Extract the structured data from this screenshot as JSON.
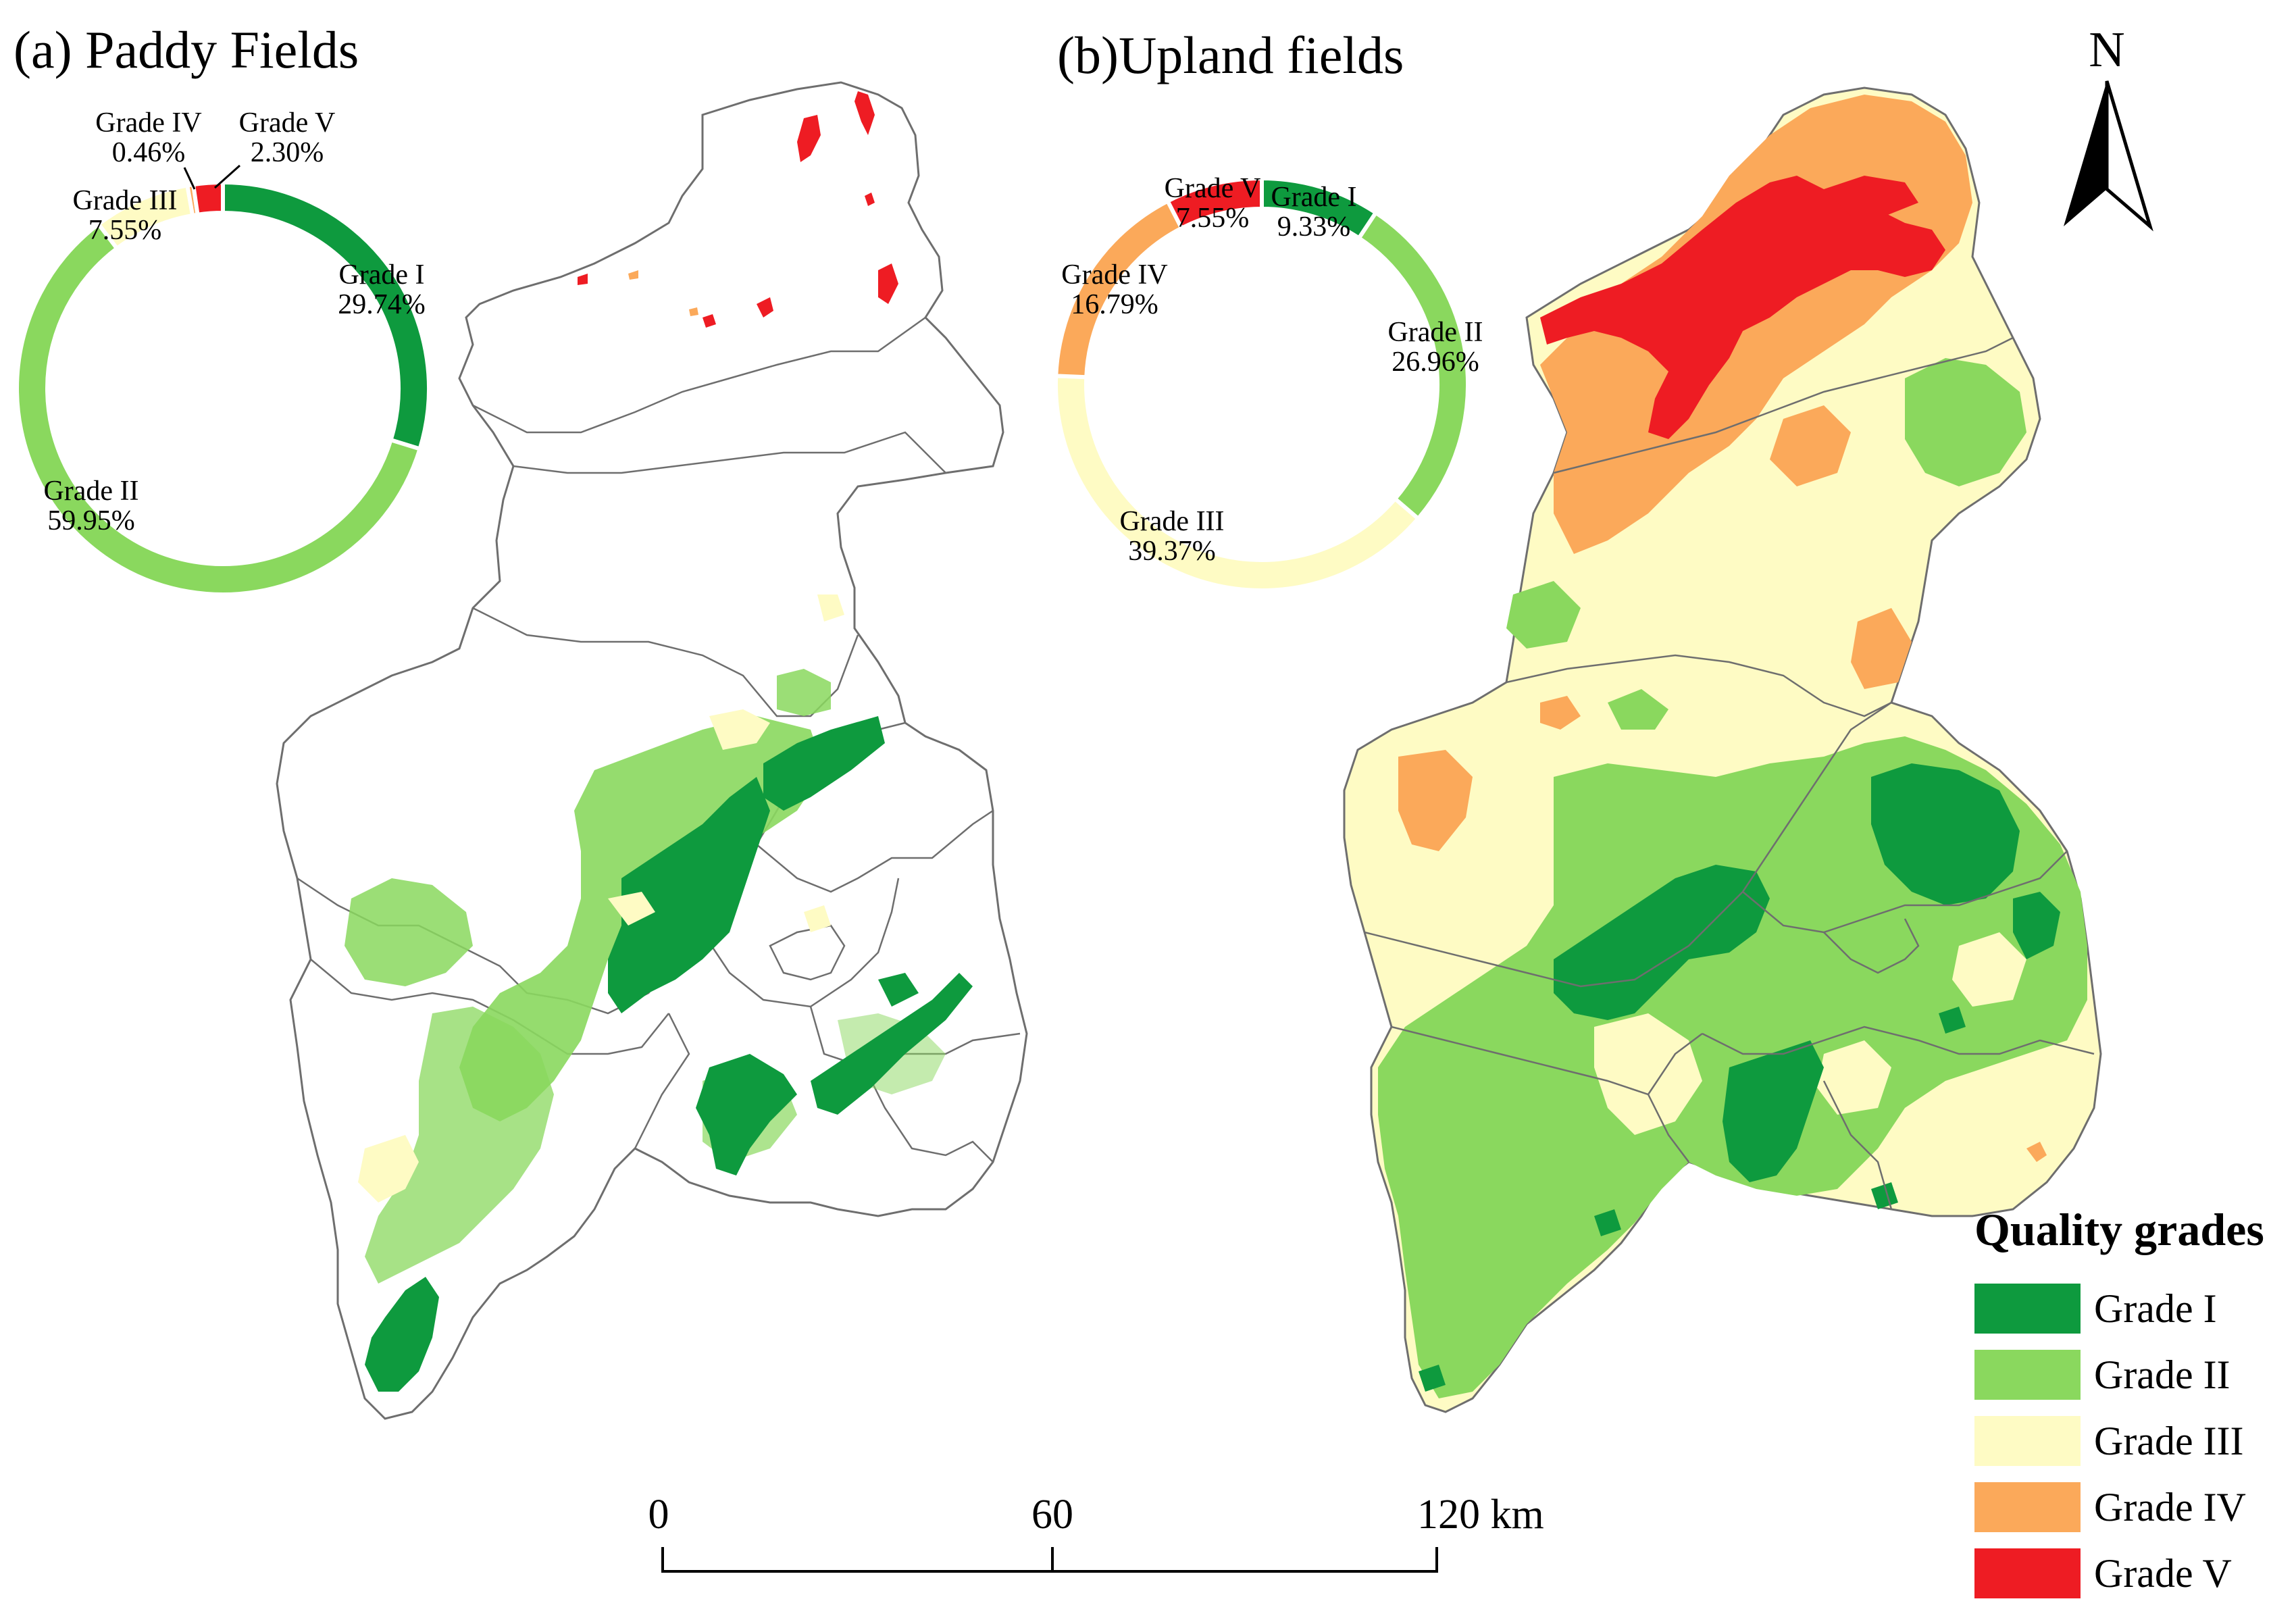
{
  "panels": [
    {
      "title": "(a) Paddy Fields",
      "donut": [
        {
          "label": "Grade I",
          "pct_text": "29.74%",
          "value": 29.74,
          "grade": 1
        },
        {
          "label": "Grade II",
          "pct_text": "59.95%",
          "value": 59.95,
          "grade": 2
        },
        {
          "label": "Grade III",
          "pct_text": "7.55%",
          "value": 7.55,
          "grade": 3
        },
        {
          "label": "Grade IV",
          "pct_text": "0.46%",
          "value": 0.46,
          "grade": 4
        },
        {
          "label": "Grade V",
          "pct_text": "2.30%",
          "value": 2.3,
          "grade": 5
        }
      ]
    },
    {
      "title": "(b)Upland fields",
      "donut": [
        {
          "label": "Grade I",
          "pct_text": "9.33%",
          "value": 9.33,
          "grade": 1
        },
        {
          "label": "Grade II",
          "pct_text": "26.96%",
          "value": 26.96,
          "grade": 2
        },
        {
          "label": "Grade III",
          "pct_text": "39.37%",
          "value": 39.37,
          "grade": 3
        },
        {
          "label": "Grade IV",
          "pct_text": "16.79%",
          "value": 16.79,
          "grade": 4
        },
        {
          "label": "Grade V",
          "pct_text": "7.55%",
          "value": 7.55,
          "grade": 5
        }
      ]
    }
  ],
  "north_arrow": {
    "label": "N"
  },
  "scale_bar": {
    "ticks": [
      "0",
      "60",
      "120 km"
    ]
  },
  "legend": {
    "title": "Quality grades",
    "items": [
      {
        "label": "Grade I",
        "color": "#0e9a3e"
      },
      {
        "label": "Grade II",
        "color": "#8ad85e"
      },
      {
        "label": "Grade III",
        "color": "#fefbc4"
      },
      {
        "label": "Grade IV",
        "color": "#fba95a"
      },
      {
        "label": "Grade V",
        "color": "#ee1c23"
      }
    ]
  },
  "colors": {
    "grade1": "#0e9a3e",
    "grade2": "#8ad85e",
    "grade3": "#fefbc4",
    "grade4": "#fba95a",
    "grade5": "#ee1c23",
    "boundary": "#6e6e6e"
  }
}
